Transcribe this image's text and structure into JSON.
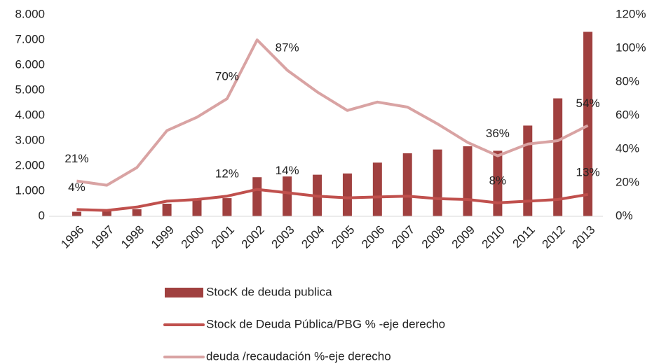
{
  "chart_data": {
    "type": "bar-line",
    "categories": [
      "1996",
      "1997",
      "1998",
      "1999",
      "2000",
      "2001",
      "2002",
      "2003",
      "2004",
      "2005",
      "2006",
      "2007",
      "2008",
      "2009",
      "2010",
      "2011",
      "2012",
      "2013"
    ],
    "series": [
      {
        "name": "StocK de deuda publica",
        "type": "bar",
        "axis": "y",
        "color": "#a0403f",
        "values": [
          180,
          200,
          280,
          500,
          650,
          720,
          1550,
          1580,
          1650,
          1700,
          2130,
          2500,
          2650,
          2780,
          2600,
          3600,
          4680,
          7320
        ]
      },
      {
        "name": "Stock de Deuda Pública/PBG % -eje derecho",
        "type": "line",
        "axis": "y2",
        "color": "#c0504d",
        "values": [
          4,
          3.5,
          5.5,
          9,
          10,
          12,
          16,
          14,
          12,
          11,
          11.5,
          12,
          10.5,
          10,
          8,
          9,
          10,
          13
        ],
        "value_labels": [
          "4%",
          null,
          null,
          null,
          null,
          "12%",
          null,
          "14%",
          null,
          null,
          null,
          null,
          null,
          null,
          "8%",
          null,
          null,
          "13%"
        ]
      },
      {
        "name": "deuda /recaudación %-eje derecho",
        "type": "line",
        "axis": "y2",
        "color": "#d9a3a3",
        "values": [
          21,
          18.5,
          29,
          51,
          59,
          70,
          105,
          87,
          74,
          63,
          68,
          65,
          55,
          44,
          36,
          43,
          45,
          54
        ],
        "value_labels": [
          "21%",
          null,
          null,
          null,
          null,
          "70%",
          null,
          "87%",
          null,
          null,
          null,
          null,
          null,
          null,
          "36%",
          null,
          null,
          "54%"
        ]
      }
    ],
    "ylim": [
      0,
      8000
    ],
    "yticks": [
      0,
      {
        "value": 1000,
        "label": "1.000"
      },
      {
        "value": 2000,
        "label": "2.000"
      },
      {
        "value": 3000,
        "label": "3.000"
      },
      {
        "value": 4000,
        "label": "4.000"
      },
      {
        "value": 5000,
        "label": "5.000"
      },
      {
        "value": 6000,
        "label": "6.000"
      },
      {
        "value": 7000,
        "label": "7.000"
      },
      {
        "value": 8000,
        "label": "8.000"
      }
    ],
    "y2lim": [
      0,
      120
    ],
    "y2ticks": [
      {
        "value": 0,
        "label": "0%"
      },
      {
        "value": 20,
        "label": "20%"
      },
      {
        "value": 40,
        "label": "40%"
      },
      {
        "value": 60,
        "label": "60%"
      },
      {
        "value": 80,
        "label": "80%"
      },
      {
        "value": 100,
        "label": "100%"
      },
      {
        "value": 120,
        "label": "120%"
      }
    ],
    "grid": false,
    "legend": "bottom"
  }
}
